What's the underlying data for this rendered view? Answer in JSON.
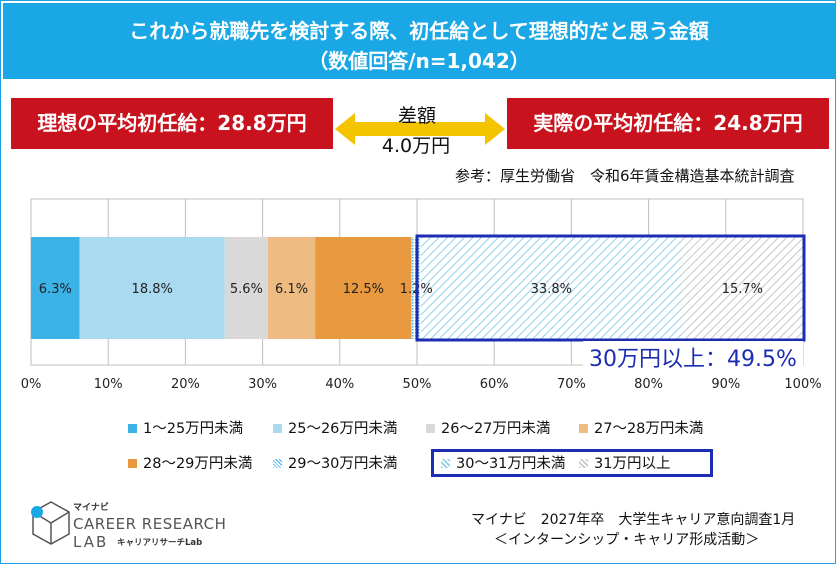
{
  "title": {
    "line1": "これから就職先を検討する際、初任給として理想的だと思う金額",
    "line2": "（数値回答/n=1,042）"
  },
  "comparison": {
    "ideal": "理想の平均初任給：28.8万円",
    "actual": "実際の平均初任給：24.8万円",
    "gap_label": "差額",
    "gap_value": "4.0万円",
    "source_note": "参考：厚生労働省　令和6年賃金構造基本統計調査"
  },
  "highlight": {
    "label": "30万円以上：49.5%",
    "color": "#1c2db3"
  },
  "chart_data": {
    "type": "bar",
    "orientation": "horizontal-stacked",
    "categories": [
      ""
    ],
    "x_axis": {
      "min": 0,
      "max": 100,
      "ticks": [
        "0%",
        "10%",
        "20%",
        "30%",
        "40%",
        "50%",
        "60%",
        "70%",
        "80%",
        "90%",
        "100%"
      ]
    },
    "series": [
      {
        "name": "1～25万円未満",
        "values": [
          6.3
        ],
        "label": "6.3%",
        "color": "#3bb3e6",
        "pattern": "solid"
      },
      {
        "name": "25～26万円未満",
        "values": [
          18.8
        ],
        "label": "18.8%",
        "color": "#a9daf0",
        "pattern": "solid"
      },
      {
        "name": "26～27万円未満",
        "values": [
          5.6
        ],
        "label": "5.6%",
        "color": "#d9d9d9",
        "pattern": "solid"
      },
      {
        "name": "27～28万円未満",
        "values": [
          6.1
        ],
        "label": "6.1%",
        "color": "#eebb82",
        "pattern": "solid"
      },
      {
        "name": "28～29万円未満",
        "values": [
          12.5
        ],
        "label": "12.5%",
        "color": "#e8983e",
        "pattern": "solid"
      },
      {
        "name": "29～30万円未満",
        "values": [
          1.2
        ],
        "label": "1.2%",
        "color": "#3bb3e6",
        "pattern": "dots"
      },
      {
        "name": "30～31万円未満",
        "values": [
          33.8
        ],
        "label": "33.8%",
        "color": "#8fd0ee",
        "pattern": "diag"
      },
      {
        "name": "31万円以上",
        "values": [
          15.7
        ],
        "label": "15.7%",
        "color": "#c8c8c8",
        "pattern": "diag"
      }
    ]
  },
  "footer": {
    "logo_brand": "マイナビ",
    "logo_line1": "CAREER RESEARCH",
    "logo_line2": "LAB",
    "logo_sub": "キャリアリサーチLab",
    "survey_line1": "マイナビ　2027年卒　大学生キャリア意向調査1月",
    "survey_line2": "＜インターンシップ・キャリア形成活動＞"
  },
  "colors": {
    "header_blue": "#1aa7e5",
    "red": "#c8121d",
    "arrow": "#f5c400"
  }
}
